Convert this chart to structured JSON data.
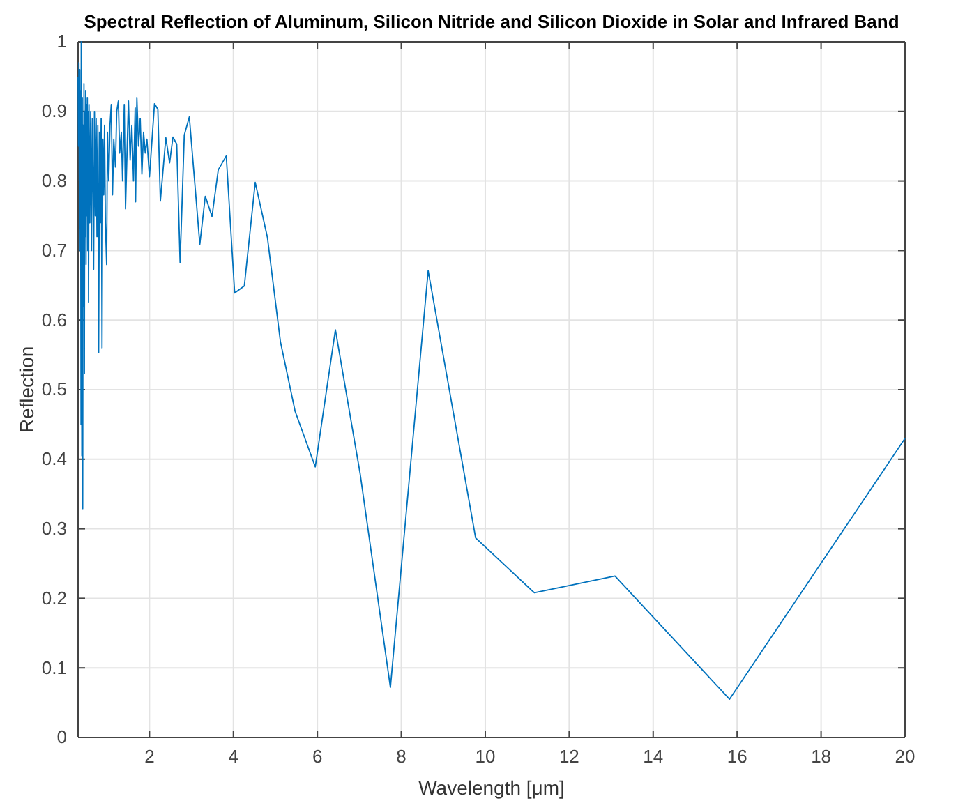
{
  "chart_data": {
    "type": "line",
    "title": "Spectral Reflection of Aluminum, Silicon Nitride and Silicon Dioxide in Solar and Infrared Band",
    "xlabel": "Wavelength [μm]",
    "ylabel": "Reflection",
    "xlim": [
      0.3,
      20
    ],
    "xticks": [
      2,
      4,
      6,
      8,
      10,
      12,
      14,
      16,
      18,
      20
    ],
    "ylim": [
      0,
      1
    ],
    "yticks": [
      0,
      0.1,
      0.2,
      0.3,
      0.4,
      0.5,
      0.6,
      0.7,
      0.8,
      0.9,
      1
    ],
    "grid": true,
    "marker": "none",
    "line_style": "solid",
    "series": [
      {
        "color": "#0072bd",
        "x": [
          0.3,
          0.31,
          0.32,
          0.33,
          0.34,
          0.35,
          0.36,
          0.37,
          0.375,
          0.385,
          0.39,
          0.4,
          0.41,
          0.42,
          0.43,
          0.44,
          0.45,
          0.46,
          0.47,
          0.48,
          0.49,
          0.5,
          0.51,
          0.52,
          0.53,
          0.54,
          0.55,
          0.56,
          0.58,
          0.6,
          0.62,
          0.64,
          0.66,
          0.67,
          0.69,
          0.71,
          0.73,
          0.75,
          0.77,
          0.79,
          0.81,
          0.83,
          0.85,
          0.87,
          0.89,
          0.91,
          0.93,
          0.95,
          0.98,
          1.0,
          1.03,
          1.06,
          1.09,
          1.12,
          1.15,
          1.19,
          1.22,
          1.26,
          1.29,
          1.33,
          1.36,
          1.4,
          1.43,
          1.47,
          1.5,
          1.54,
          1.58,
          1.62,
          1.66,
          1.67,
          1.7,
          1.74,
          1.78,
          1.82,
          1.86,
          1.9,
          1.94,
          2.0,
          2.12,
          2.2,
          2.26,
          2.39,
          2.48,
          2.56,
          2.65,
          2.73,
          2.83,
          2.95,
          3.2,
          3.33,
          3.49,
          3.64,
          3.83,
          4.03,
          4.26,
          4.52,
          4.81,
          5.12,
          5.47,
          5.95,
          6.43,
          7.02,
          7.74,
          8.64,
          9.77,
          11.17,
          13.09,
          15.82,
          20
        ],
        "values": [
          0.95,
          0.85,
          0.97,
          0.8,
          0.96,
          0.7,
          0.93,
          0.45,
          1.0,
          0.6,
          0.405,
          0.92,
          0.329,
          0.88,
          0.62,
          0.94,
          0.523,
          0.9,
          0.72,
          0.93,
          0.68,
          0.91,
          0.75,
          0.92,
          0.7,
          0.9,
          0.626,
          0.91,
          0.74,
          0.9,
          0.7,
          0.89,
          0.78,
          0.673,
          0.9,
          0.75,
          0.89,
          0.72,
          0.88,
          0.553,
          0.87,
          0.74,
          0.89,
          0.56,
          0.86,
          0.78,
          0.88,
          0.74,
          0.68,
          0.87,
          0.8,
          0.88,
          0.91,
          0.78,
          0.86,
          0.82,
          0.9,
          0.915,
          0.84,
          0.87,
          0.8,
          0.91,
          0.76,
          0.85,
          0.915,
          0.83,
          0.88,
          0.8,
          0.905,
          0.77,
          0.92,
          0.85,
          0.89,
          0.81,
          0.87,
          0.84,
          0.86,
          0.806,
          0.911,
          0.903,
          0.771,
          0.862,
          0.826,
          0.863,
          0.853,
          0.683,
          0.866,
          0.892,
          0.709,
          0.778,
          0.749,
          0.816,
          0.836,
          0.639,
          0.649,
          0.798,
          0.719,
          0.569,
          0.469,
          0.389,
          0.586,
          0.379,
          0.072,
          0.671,
          0.287,
          0.208,
          0.232,
          0.055,
          0.43
        ]
      }
    ]
  }
}
